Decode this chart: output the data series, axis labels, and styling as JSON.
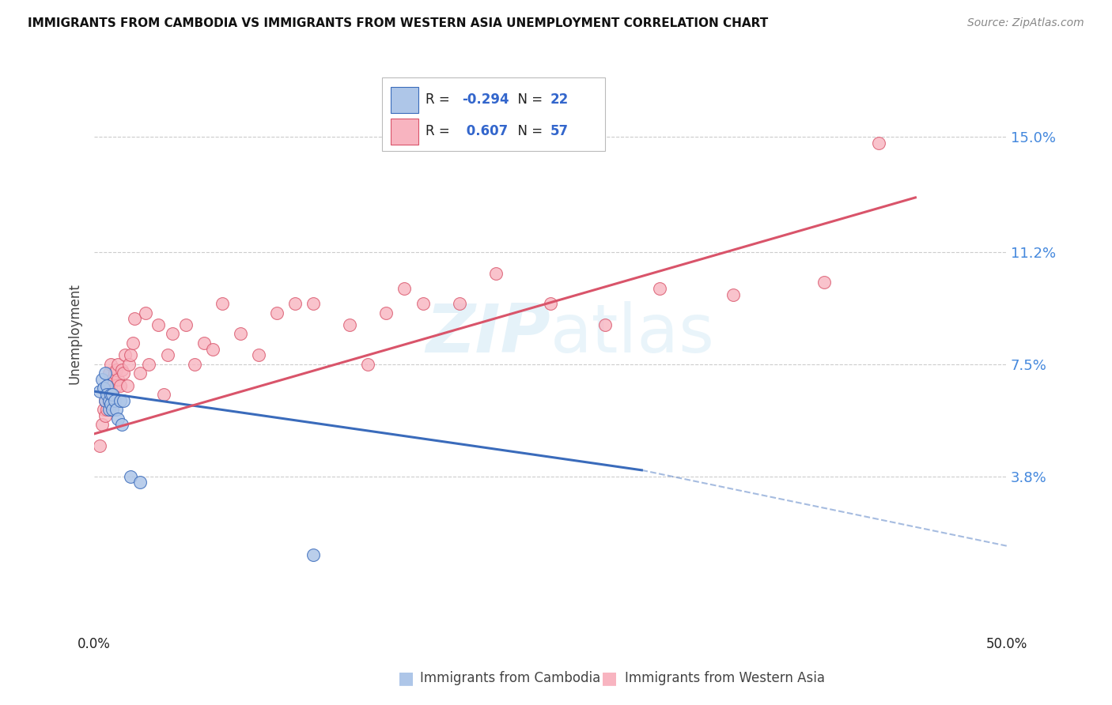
{
  "title": "IMMIGRANTS FROM CAMBODIA VS IMMIGRANTS FROM WESTERN ASIA UNEMPLOYMENT CORRELATION CHART",
  "source": "Source: ZipAtlas.com",
  "ylabel": "Unemployment",
  "ytick_labels": [
    "3.8%",
    "7.5%",
    "11.2%",
    "15.0%"
  ],
  "ytick_values": [
    0.038,
    0.075,
    0.112,
    0.15
  ],
  "xlim": [
    0.0,
    0.5
  ],
  "ylim": [
    -0.005,
    0.175
  ],
  "watermark": "ZIPatlas",
  "blue_color": "#aec6e8",
  "pink_color": "#f8b4c0",
  "blue_line_color": "#3a6bbb",
  "pink_line_color": "#d9546a",
  "blue_scatter_x": [
    0.003,
    0.004,
    0.005,
    0.006,
    0.006,
    0.007,
    0.007,
    0.008,
    0.008,
    0.009,
    0.009,
    0.01,
    0.01,
    0.011,
    0.012,
    0.013,
    0.014,
    0.015,
    0.016,
    0.02,
    0.025,
    0.12
  ],
  "blue_scatter_y": [
    0.066,
    0.07,
    0.067,
    0.072,
    0.063,
    0.068,
    0.065,
    0.063,
    0.06,
    0.065,
    0.062,
    0.065,
    0.06,
    0.063,
    0.06,
    0.057,
    0.063,
    0.055,
    0.063,
    0.038,
    0.036,
    0.012
  ],
  "pink_scatter_x": [
    0.003,
    0.004,
    0.005,
    0.006,
    0.006,
    0.007,
    0.007,
    0.008,
    0.008,
    0.009,
    0.009,
    0.01,
    0.01,
    0.011,
    0.012,
    0.012,
    0.013,
    0.013,
    0.014,
    0.015,
    0.016,
    0.017,
    0.018,
    0.019,
    0.02,
    0.021,
    0.022,
    0.025,
    0.028,
    0.03,
    0.035,
    0.038,
    0.04,
    0.043,
    0.05,
    0.055,
    0.06,
    0.065,
    0.07,
    0.08,
    0.09,
    0.1,
    0.11,
    0.12,
    0.14,
    0.15,
    0.16,
    0.17,
    0.18,
    0.2,
    0.22,
    0.25,
    0.28,
    0.31,
    0.35,
    0.4,
    0.43
  ],
  "pink_scatter_y": [
    0.048,
    0.055,
    0.06,
    0.058,
    0.063,
    0.06,
    0.068,
    0.063,
    0.072,
    0.068,
    0.075,
    0.065,
    0.07,
    0.072,
    0.068,
    0.073,
    0.07,
    0.075,
    0.068,
    0.073,
    0.072,
    0.078,
    0.068,
    0.075,
    0.078,
    0.082,
    0.09,
    0.072,
    0.092,
    0.075,
    0.088,
    0.065,
    0.078,
    0.085,
    0.088,
    0.075,
    0.082,
    0.08,
    0.095,
    0.085,
    0.078,
    0.092,
    0.095,
    0.095,
    0.088,
    0.075,
    0.092,
    0.1,
    0.095,
    0.095,
    0.105,
    0.095,
    0.088,
    0.1,
    0.098,
    0.102,
    0.148
  ],
  "blue_line_x_solid_start": 0.0,
  "blue_line_x_solid_end": 0.3,
  "blue_line_x_dash_end": 0.5,
  "blue_line_y_start": 0.066,
  "blue_line_y_solid_end": 0.04,
  "blue_line_y_dash_end": 0.015,
  "pink_line_x_start": 0.0,
  "pink_line_x_end": 0.45,
  "pink_line_y_start": 0.052,
  "pink_line_y_end": 0.13
}
